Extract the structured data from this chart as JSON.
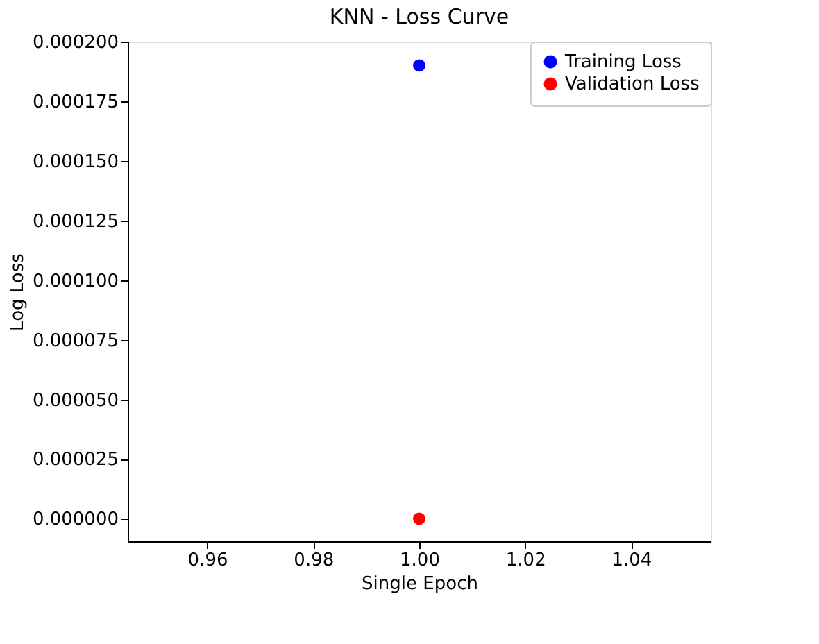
{
  "chart_data": {
    "type": "scatter",
    "title": "KNN - Loss Curve",
    "xlabel": "Single Epoch",
    "ylabel": "Log Loss",
    "series": [
      {
        "name": "Training Loss",
        "color": "#0000ff",
        "x": [
          1.0
        ],
        "values": [
          0.00019
        ]
      },
      {
        "name": "Validation Loss",
        "color": "#ff0000",
        "x": [
          1.0
        ],
        "values": [
          0.0
        ]
      }
    ],
    "xlim": [
      0.945,
      1.055
    ],
    "xticks": [
      0.96,
      0.98,
      {
        "value": 1.0,
        "label": "1.00"
      },
      1.02,
      1.04
    ],
    "ylim": [
      -9.5e-06,
      0.0002
    ],
    "yticks": [
      {
        "value": 0,
        "label": "0.000000"
      },
      {
        "value": 2.5e-05,
        "label": "0.000025"
      },
      {
        "value": 5e-05,
        "label": "0.000050"
      },
      {
        "value": 7.5e-05,
        "label": "0.000075"
      },
      {
        "value": 0.0001,
        "label": "0.000100"
      },
      {
        "value": 0.000125,
        "label": "0.000125"
      },
      {
        "value": 0.00015,
        "label": "0.000150"
      },
      {
        "value": 0.000175,
        "label": "0.000175"
      },
      {
        "value": 0.0002,
        "label": "0.000200"
      }
    ],
    "grid": false,
    "legend": "top right",
    "marker": "circle"
  }
}
